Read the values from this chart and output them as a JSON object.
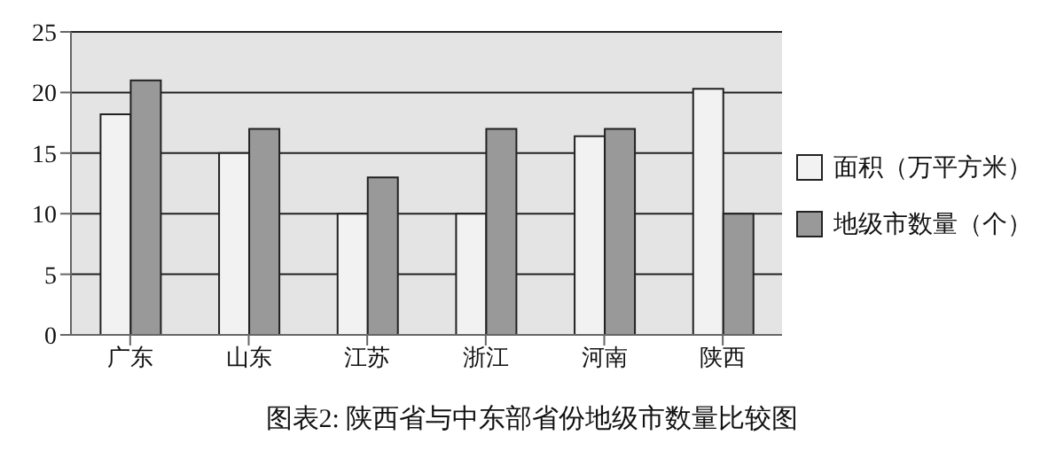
{
  "chart_data": {
    "type": "bar",
    "title": "图表2: 陕西省与中东部省份地级市数量比较图",
    "categories": [
      "广东",
      "山东",
      "江苏",
      "浙江",
      "河南",
      "陕西"
    ],
    "series": [
      {
        "name": "面积（万平方米）",
        "color": "#f2f2f2",
        "values": [
          18.2,
          15,
          10,
          10,
          16.4,
          20.3
        ]
      },
      {
        "name": "地级市数量（个）",
        "color": "#999999",
        "values": [
          21,
          17,
          13,
          17,
          17,
          10
        ]
      }
    ],
    "ylim": [
      0,
      25
    ],
    "yticks": [
      0,
      5,
      10,
      15,
      20,
      25
    ],
    "grid": "y",
    "legend": "right"
  }
}
